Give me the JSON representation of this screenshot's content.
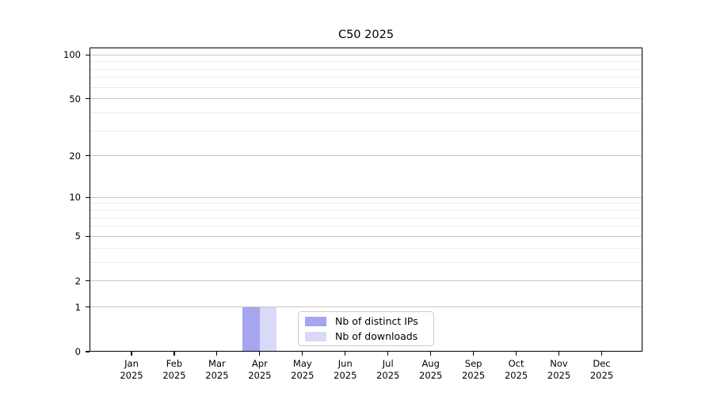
{
  "chart_data": {
    "type": "bar",
    "title": "C50 2025",
    "categories": [
      "Jan 2025",
      "Feb 2025",
      "Mar 2025",
      "Apr 2025",
      "May 2025",
      "Jun 2025",
      "Jul 2025",
      "Aug 2025",
      "Sep 2025",
      "Oct 2025",
      "Nov 2025",
      "Dec 2025"
    ],
    "series": [
      {
        "name": "Nb of distinct IPs",
        "color": "#a5a5f0",
        "values": [
          0,
          0,
          0,
          1,
          0,
          0,
          0,
          0,
          0,
          0,
          0,
          0
        ]
      },
      {
        "name": "Nb of downloads",
        "color": "#d9d9fa",
        "values": [
          0,
          0,
          0,
          1,
          0,
          0,
          0,
          0,
          0,
          0,
          0,
          0
        ]
      }
    ],
    "xlabel": "",
    "ylabel": "",
    "y_axis": {
      "scale": "log1p",
      "max": 112,
      "ticks": [
        0,
        1,
        2,
        5,
        10,
        20,
        50,
        100
      ],
      "minor_ticks": [
        3,
        4,
        6,
        7,
        8,
        9,
        30,
        40,
        60,
        70,
        80,
        90
      ]
    },
    "grid": {
      "horizontal": true,
      "vertical": false,
      "major_color": "#c6c6c6",
      "minor_color": "#ebebeb"
    },
    "legend": {
      "position": "inside-bottom-center",
      "entries": [
        "Nb of distinct IPs",
        "Nb of downloads"
      ]
    },
    "colors": {
      "spine": "#000000",
      "background": "#ffffff",
      "text": "#000000"
    }
  }
}
